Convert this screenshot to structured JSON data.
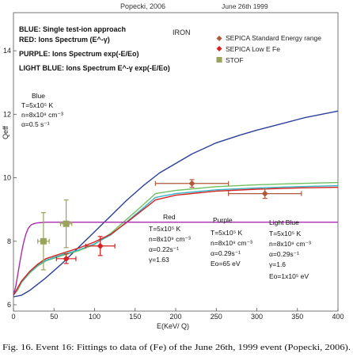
{
  "header": {
    "left": "Popecki, 2006",
    "right": "June 26th 1999"
  },
  "caption": "Fig. 16. Event 16: Fittings to data of (Fe) of the June 26th, 1999 event (Popecki, 2006).",
  "chart_data": {
    "type": "line",
    "xlabel": "E(KeV/ Q)",
    "ylabel": "Qeff",
    "xlim": [
      0,
      400
    ],
    "ylim": [
      5.8,
      15.2
    ],
    "xticks": [
      0,
      50,
      100,
      150,
      200,
      250,
      300,
      350,
      400
    ],
    "yticks": [
      6,
      8,
      10,
      12,
      14
    ],
    "grid": false,
    "element": "IRON",
    "colors": {
      "blue": "#2b3f9a",
      "red": "#d82020",
      "purple": "#a82bb0",
      "lightblue": "#34b5c6",
      "green": "#6fc15f",
      "stof": "#9aa35a",
      "sepica_std": "#b0583a"
    },
    "model_legend": [
      "BLUE: Single test-ion approach",
      "RED: Ions Spectrum (E^-γ)",
      "PURPLE: Ions Spectrum exp(-E/Eo)",
      "LIGHT BLUE: Ions Spectrum E^-γ exp(-E/Eo)"
    ],
    "data_legend": [
      {
        "name": "SEPICA Standard Energy range",
        "marker": "diamond",
        "color": "#b0583a"
      },
      {
        "name": "SEPICA Low E Fe",
        "marker": "diamond",
        "color": "#d82020"
      },
      {
        "name": "STOF",
        "marker": "square",
        "color": "#9aa35a"
      }
    ],
    "series": [
      {
        "name": "Blue",
        "color": "#2b3f9a",
        "x": [
          0,
          10,
          20,
          40,
          60,
          80,
          100,
          120,
          140,
          160,
          180,
          200,
          220,
          250,
          280,
          300,
          330,
          360,
          400
        ],
        "y": [
          6.25,
          6.3,
          6.45,
          6.85,
          7.3,
          7.8,
          8.3,
          8.8,
          9.3,
          9.75,
          10.15,
          10.45,
          10.75,
          11.1,
          11.35,
          11.5,
          11.7,
          11.9,
          12.1
        ]
      },
      {
        "name": "Green",
        "color": "#6fc15f",
        "x": [
          0,
          5,
          10,
          20,
          30,
          40,
          60,
          80,
          100,
          120,
          140,
          160,
          175,
          200,
          250,
          300,
          350,
          400
        ],
        "y": [
          6.3,
          6.45,
          6.7,
          7.0,
          7.22,
          7.38,
          7.55,
          7.7,
          7.9,
          8.25,
          8.7,
          9.15,
          9.5,
          9.6,
          9.72,
          9.78,
          9.82,
          9.85
        ]
      },
      {
        "name": "Light Blue",
        "color": "#34b5c6",
        "x": [
          0,
          5,
          10,
          20,
          30,
          40,
          60,
          80,
          100,
          120,
          140,
          160,
          175,
          200,
          250,
          300,
          350,
          400
        ],
        "y": [
          6.3,
          6.5,
          6.72,
          7.02,
          7.25,
          7.4,
          7.58,
          7.72,
          7.92,
          8.2,
          8.62,
          9.05,
          9.38,
          9.5,
          9.62,
          9.68,
          9.72,
          9.75
        ]
      },
      {
        "name": "Red",
        "color": "#d82020",
        "x": [
          0,
          5,
          10,
          20,
          30,
          40,
          60,
          80,
          100,
          120,
          140,
          160,
          175,
          200,
          250,
          300,
          350,
          400
        ],
        "y": [
          6.3,
          6.52,
          6.75,
          7.05,
          7.28,
          7.45,
          7.62,
          7.78,
          7.98,
          8.22,
          8.6,
          9.0,
          9.3,
          9.45,
          9.58,
          9.64,
          9.68,
          9.7
        ]
      },
      {
        "name": "Purple",
        "color": "#a82bb0",
        "x": [
          0,
          3,
          6,
          9,
          12,
          15,
          18,
          22,
          26,
          30,
          40,
          60,
          100,
          200,
          300,
          400
        ],
        "y": [
          6.3,
          6.6,
          7.05,
          7.5,
          7.9,
          8.2,
          8.4,
          8.52,
          8.56,
          8.58,
          8.6,
          8.6,
          8.6,
          8.6,
          8.6,
          8.6
        ]
      }
    ],
    "points": [
      {
        "set": "SEPICA Standard Energy range",
        "x": 220,
        "y": 9.82,
        "xerr": 45,
        "yerr": 0.12,
        "color": "#b0583a",
        "marker": "diamond"
      },
      {
        "set": "SEPICA Standard Energy range",
        "x": 310,
        "y": 9.5,
        "xerr": 45,
        "yerr": 0.15,
        "color": "#b0583a",
        "marker": "diamond"
      },
      {
        "set": "SEPICA Low E Fe",
        "x": 65,
        "y": 7.45,
        "xerr": 12,
        "yerr": 0.15,
        "color": "#d82020",
        "marker": "diamond"
      },
      {
        "set": "SEPICA Low E Fe",
        "x": 107,
        "y": 7.85,
        "xerr": 18,
        "yerr": 0.3,
        "color": "#d82020",
        "marker": "diamond"
      },
      {
        "set": "STOF",
        "x": 37,
        "y": 8.0,
        "xerr": 7,
        "yerr": 0.9,
        "color": "#9aa35a",
        "marker": "square"
      },
      {
        "set": "STOF",
        "x": 65,
        "y": 8.55,
        "xerr": 7,
        "yerr": 0.75,
        "color": "#9aa35a",
        "marker": "square"
      }
    ],
    "annotations": {
      "blue": [
        "Blue",
        "T=5x10⁵ K",
        "n=8x10⁹ cm⁻³",
        "α=0.5 s⁻¹"
      ],
      "red": [
        "Red",
        "T=5x10⁵ K",
        "n=8x10⁹ cm⁻³",
        "α=0.22s⁻¹",
        "γ=1.63"
      ],
      "purple": [
        "Purple",
        "T=5x10⁵ K",
        "n=8x10⁹ cm⁻³",
        "α=0.29s⁻¹",
        "Eo=65 eV"
      ],
      "lightblue": [
        "Light Blue",
        "T=5x10⁵ K",
        "n=8x10⁹ cm⁻³",
        "α=0.29s⁻¹",
        "γ=1.6",
        "Eo=1x10⁵ eV"
      ]
    }
  }
}
